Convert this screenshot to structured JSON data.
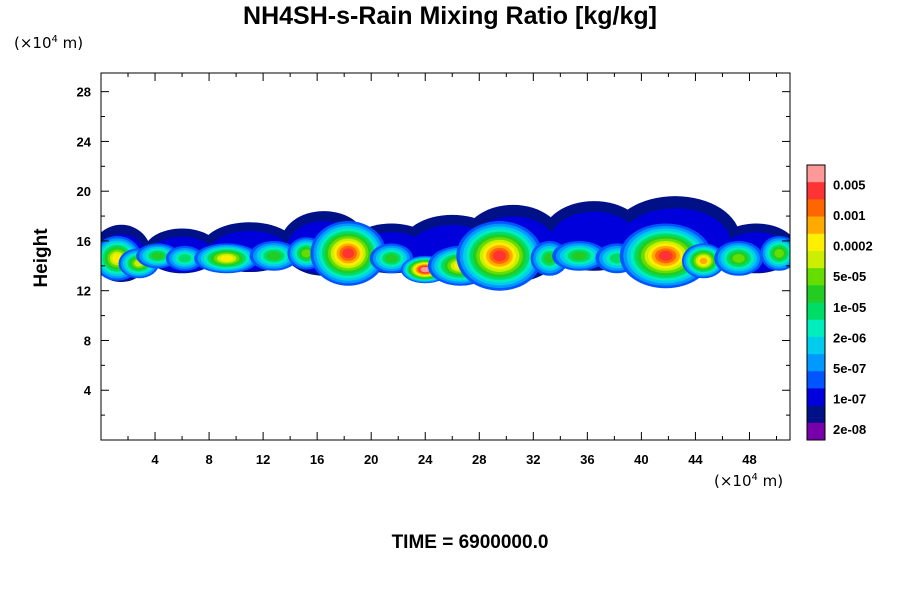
{
  "chart_data": {
    "type": "heatmap",
    "title": "NH4SH-s-Rain Mixing Ratio [kg/kg]",
    "xlabel": "",
    "ylabel": "Height",
    "x_unit": "(×10⁴ m)",
    "y_unit": "(×10⁴ m)",
    "xlim": [
      0,
      51
    ],
    "ylim": [
      0,
      29.5
    ],
    "x_ticks": [
      "4",
      "8",
      "12",
      "16",
      "20",
      "24",
      "28",
      "32",
      "36",
      "40",
      "44",
      "48"
    ],
    "y_ticks": [
      "4",
      "8",
      "12",
      "16",
      "20",
      "24",
      "28"
    ],
    "colorbar": {
      "labels": [
        "0.005",
        "0.001",
        "0.0002",
        "5e-05",
        "1e-05",
        "2e-06",
        "5e-07",
        "1e-07",
        "2e-08"
      ],
      "colors": [
        "#ff9999",
        "#ff3333",
        "#ff6600",
        "#ffaa00",
        "#ffee00",
        "#ccee00",
        "#66dd00",
        "#22cc22",
        "#00dd66",
        "#00eebb",
        "#00ccee",
        "#0099ff",
        "#0055ff",
        "#0000dd",
        "#001188",
        "#7700aa"
      ]
    },
    "annotation": "TIME = 6900000.0",
    "cloud_layer": {
      "y_range": [
        12.5,
        19.5
      ],
      "note": "patchy mixing-ratio field concentrated between ~13 and ~17 (x10^4 m) height, peaks near x=24 and x=30, x=42"
    },
    "grid": false
  }
}
